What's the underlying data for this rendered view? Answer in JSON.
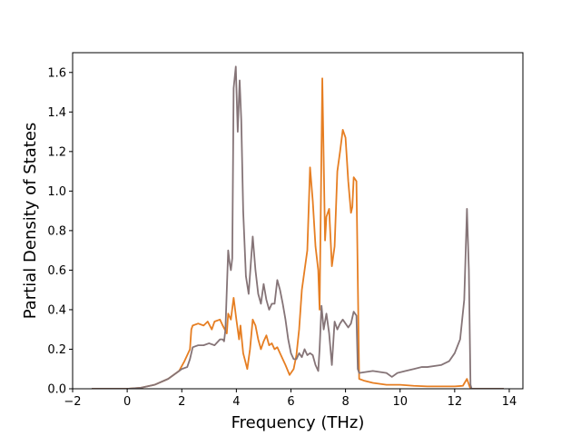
{
  "chart_data": {
    "type": "line",
    "title": "",
    "xlabel": "Frequency (THz)",
    "ylabel": "Partial Density of States",
    "xlim": [
      -2,
      14.5
    ],
    "ylim": [
      0,
      1.7
    ],
    "xticks": [
      -2,
      0,
      2,
      4,
      6,
      8,
      10,
      12,
      14
    ],
    "xtick_labels": [
      "−2",
      "0",
      "2",
      "4",
      "6",
      "8",
      "10",
      "12",
      "14"
    ],
    "yticks": [
      0.0,
      0.2,
      0.4,
      0.6,
      0.8,
      1.0,
      1.2,
      1.4,
      1.6
    ],
    "ytick_labels": [
      "0.0",
      "0.2",
      "0.4",
      "0.6",
      "0.8",
      "1.0",
      "1.2",
      "1.4",
      "1.6"
    ],
    "grid": false,
    "legend": "none",
    "series": [
      {
        "color": "#e67e22",
        "points": [
          [
            -1.3,
            0
          ],
          [
            0.0,
            0.0
          ],
          [
            0.5,
            0.005
          ],
          [
            1.0,
            0.02
          ],
          [
            1.5,
            0.05
          ],
          [
            1.9,
            0.09
          ],
          [
            2.1,
            0.14
          ],
          [
            2.3,
            0.2
          ],
          [
            2.35,
            0.3
          ],
          [
            2.4,
            0.32
          ],
          [
            2.6,
            0.33
          ],
          [
            2.8,
            0.32
          ],
          [
            2.95,
            0.34
          ],
          [
            3.1,
            0.3
          ],
          [
            3.2,
            0.34
          ],
          [
            3.4,
            0.35
          ],
          [
            3.5,
            0.32
          ],
          [
            3.65,
            0.28
          ],
          [
            3.7,
            0.38
          ],
          [
            3.8,
            0.35
          ],
          [
            3.9,
            0.46
          ],
          [
            4.0,
            0.35
          ],
          [
            4.1,
            0.25
          ],
          [
            4.15,
            0.32
          ],
          [
            4.25,
            0.18
          ],
          [
            4.4,
            0.1
          ],
          [
            4.5,
            0.2
          ],
          [
            4.6,
            0.35
          ],
          [
            4.7,
            0.32
          ],
          [
            4.8,
            0.25
          ],
          [
            4.9,
            0.2
          ],
          [
            5.0,
            0.24
          ],
          [
            5.1,
            0.27
          ],
          [
            5.2,
            0.22
          ],
          [
            5.3,
            0.23
          ],
          [
            5.4,
            0.2
          ],
          [
            5.5,
            0.21
          ],
          [
            5.6,
            0.18
          ],
          [
            5.8,
            0.12
          ],
          [
            5.95,
            0.07
          ],
          [
            6.1,
            0.1
          ],
          [
            6.2,
            0.17
          ],
          [
            6.3,
            0.3
          ],
          [
            6.4,
            0.5
          ],
          [
            6.6,
            0.7
          ],
          [
            6.7,
            1.12
          ],
          [
            6.8,
            0.95
          ],
          [
            6.9,
            0.72
          ],
          [
            7.0,
            0.6
          ],
          [
            7.05,
            0.4
          ],
          [
            7.15,
            1.57
          ],
          [
            7.25,
            0.75
          ],
          [
            7.3,
            0.87
          ],
          [
            7.4,
            0.91
          ],
          [
            7.5,
            0.62
          ],
          [
            7.6,
            0.72
          ],
          [
            7.7,
            1.1
          ],
          [
            7.8,
            1.2
          ],
          [
            7.9,
            1.31
          ],
          [
            8.0,
            1.27
          ],
          [
            8.1,
            1.05
          ],
          [
            8.2,
            0.89
          ],
          [
            8.25,
            0.92
          ],
          [
            8.3,
            1.07
          ],
          [
            8.4,
            1.05
          ],
          [
            8.5,
            0.05
          ],
          [
            8.7,
            0.04
          ],
          [
            9.0,
            0.03
          ],
          [
            9.5,
            0.02
          ],
          [
            10.0,
            0.02
          ],
          [
            10.5,
            0.015
          ],
          [
            11.0,
            0.012
          ],
          [
            11.5,
            0.012
          ],
          [
            12.0,
            0.012
          ],
          [
            12.3,
            0.015
          ],
          [
            12.45,
            0.05
          ],
          [
            12.55,
            0.01
          ],
          [
            12.6,
            0
          ],
          [
            13.8,
            0
          ]
        ]
      },
      {
        "color": "#857477",
        "points": [
          [
            -1.3,
            0
          ],
          [
            0.0,
            0.0
          ],
          [
            0.5,
            0.005
          ],
          [
            1.0,
            0.02
          ],
          [
            1.5,
            0.05
          ],
          [
            1.8,
            0.08
          ],
          [
            2.0,
            0.1
          ],
          [
            2.2,
            0.11
          ],
          [
            2.3,
            0.15
          ],
          [
            2.4,
            0.21
          ],
          [
            2.6,
            0.22
          ],
          [
            2.8,
            0.22
          ],
          [
            3.0,
            0.23
          ],
          [
            3.2,
            0.22
          ],
          [
            3.4,
            0.25
          ],
          [
            3.5,
            0.25
          ],
          [
            3.55,
            0.24
          ],
          [
            3.6,
            0.3
          ],
          [
            3.7,
            0.7
          ],
          [
            3.75,
            0.64
          ],
          [
            3.8,
            0.6
          ],
          [
            3.85,
            0.66
          ],
          [
            3.9,
            1.52
          ],
          [
            3.98,
            1.63
          ],
          [
            4.05,
            1.3
          ],
          [
            4.12,
            1.56
          ],
          [
            4.18,
            1.36
          ],
          [
            4.25,
            0.9
          ],
          [
            4.35,
            0.57
          ],
          [
            4.45,
            0.48
          ],
          [
            4.6,
            0.77
          ],
          [
            4.7,
            0.6
          ],
          [
            4.8,
            0.48
          ],
          [
            4.9,
            0.43
          ],
          [
            5.0,
            0.53
          ],
          [
            5.1,
            0.45
          ],
          [
            5.2,
            0.4
          ],
          [
            5.3,
            0.43
          ],
          [
            5.4,
            0.43
          ],
          [
            5.5,
            0.55
          ],
          [
            5.6,
            0.5
          ],
          [
            5.7,
            0.43
          ],
          [
            5.8,
            0.35
          ],
          [
            5.9,
            0.25
          ],
          [
            6.0,
            0.18
          ],
          [
            6.1,
            0.15
          ],
          [
            6.2,
            0.15
          ],
          [
            6.3,
            0.18
          ],
          [
            6.4,
            0.16
          ],
          [
            6.5,
            0.2
          ],
          [
            6.6,
            0.17
          ],
          [
            6.7,
            0.18
          ],
          [
            6.8,
            0.17
          ],
          [
            6.9,
            0.12
          ],
          [
            7.0,
            0.09
          ],
          [
            7.05,
            0.2
          ],
          [
            7.12,
            0.42
          ],
          [
            7.2,
            0.3
          ],
          [
            7.3,
            0.38
          ],
          [
            7.4,
            0.28
          ],
          [
            7.5,
            0.12
          ],
          [
            7.6,
            0.34
          ],
          [
            7.7,
            0.3
          ],
          [
            7.8,
            0.33
          ],
          [
            7.9,
            0.35
          ],
          [
            8.0,
            0.33
          ],
          [
            8.1,
            0.31
          ],
          [
            8.2,
            0.33
          ],
          [
            8.3,
            0.39
          ],
          [
            8.4,
            0.37
          ],
          [
            8.45,
            0.1
          ],
          [
            8.5,
            0.08
          ],
          [
            9.0,
            0.09
          ],
          [
            9.5,
            0.08
          ],
          [
            9.7,
            0.06
          ],
          [
            9.9,
            0.08
          ],
          [
            10.2,
            0.09
          ],
          [
            10.5,
            0.1
          ],
          [
            10.8,
            0.11
          ],
          [
            11.0,
            0.11
          ],
          [
            11.5,
            0.12
          ],
          [
            11.8,
            0.14
          ],
          [
            12.0,
            0.18
          ],
          [
            12.2,
            0.25
          ],
          [
            12.35,
            0.45
          ],
          [
            12.45,
            0.91
          ],
          [
            12.52,
            0.6
          ],
          [
            12.58,
            0.02
          ],
          [
            12.62,
            0
          ],
          [
            13.8,
            0
          ]
        ]
      }
    ]
  }
}
